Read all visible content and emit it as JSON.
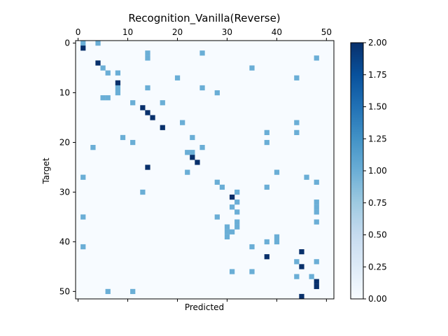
{
  "chart_data": {
    "type": "heatmap",
    "title": "Recognition_Vanilla(Reverse)",
    "xlabel": "Predicted",
    "ylabel": "Target",
    "xlim": [
      -0.5,
      51.5
    ],
    "ylim": [
      -0.5,
      51.5
    ],
    "x_ticks": [
      0,
      10,
      20,
      30,
      40,
      50
    ],
    "y_ticks": [
      0,
      10,
      20,
      30,
      40,
      50
    ],
    "colormap": "Blues",
    "value_range": [
      0,
      2
    ],
    "colorbar_ticks": [
      "0.00",
      "0.25",
      "0.50",
      "0.75",
      "1.00",
      "1.25",
      "1.50",
      "1.75",
      "2.00"
    ],
    "colors": {
      "background": "#f7fbff",
      "value_1": "#6aaed6",
      "value_2": "#08306b"
    },
    "cells": [
      [
        0,
        1,
        1
      ],
      [
        0,
        4,
        1
      ],
      [
        1,
        1,
        2
      ],
      [
        2,
        14,
        1
      ],
      [
        2,
        25,
        1
      ],
      [
        3,
        14,
        1
      ],
      [
        3,
        48,
        1
      ],
      [
        4,
        4,
        2
      ],
      [
        5,
        5,
        1
      ],
      [
        5,
        35,
        1
      ],
      [
        6,
        6,
        1
      ],
      [
        6,
        8,
        1
      ],
      [
        7,
        20,
        1
      ],
      [
        7,
        44,
        1
      ],
      [
        8,
        8,
        2
      ],
      [
        9,
        8,
        1
      ],
      [
        9,
        14,
        1
      ],
      [
        9,
        25,
        1
      ],
      [
        10,
        8,
        1
      ],
      [
        10,
        28,
        1
      ],
      [
        11,
        5,
        1
      ],
      [
        11,
        6,
        1
      ],
      [
        12,
        11,
        1
      ],
      [
        12,
        17,
        1
      ],
      [
        13,
        13,
        2
      ],
      [
        14,
        14,
        2
      ],
      [
        15,
        15,
        2
      ],
      [
        16,
        21,
        1
      ],
      [
        16,
        44,
        1
      ],
      [
        17,
        17,
        2
      ],
      [
        18,
        38,
        1
      ],
      [
        18,
        44,
        1
      ],
      [
        19,
        9,
        1
      ],
      [
        19,
        23,
        1
      ],
      [
        20,
        11,
        1
      ],
      [
        20,
        38,
        1
      ],
      [
        21,
        3,
        1
      ],
      [
        21,
        25,
        1
      ],
      [
        22,
        22,
        1
      ],
      [
        22,
        23,
        1
      ],
      [
        23,
        23,
        2
      ],
      [
        24,
        24,
        2
      ],
      [
        25,
        14,
        2
      ],
      [
        26,
        22,
        1
      ],
      [
        26,
        40,
        1
      ],
      [
        27,
        1,
        1
      ],
      [
        27,
        46,
        1
      ],
      [
        28,
        28,
        1
      ],
      [
        28,
        48,
        1
      ],
      [
        29,
        29,
        1
      ],
      [
        29,
        38,
        1
      ],
      [
        30,
        13,
        1
      ],
      [
        30,
        32,
        1
      ],
      [
        31,
        31,
        2
      ],
      [
        32,
        32,
        1
      ],
      [
        32,
        48,
        1
      ],
      [
        33,
        31,
        1
      ],
      [
        33,
        48,
        1
      ],
      [
        34,
        32,
        1
      ],
      [
        34,
        48,
        1
      ],
      [
        35,
        1,
        1
      ],
      [
        35,
        28,
        1
      ],
      [
        36,
        32,
        1
      ],
      [
        36,
        48,
        1
      ],
      [
        37,
        30,
        1
      ],
      [
        37,
        32,
        1
      ],
      [
        38,
        30,
        1
      ],
      [
        38,
        31,
        1
      ],
      [
        39,
        30,
        1
      ],
      [
        39,
        40,
        1
      ],
      [
        40,
        38,
        1
      ],
      [
        40,
        40,
        1
      ],
      [
        41,
        1,
        1
      ],
      [
        41,
        35,
        1
      ],
      [
        42,
        45,
        2
      ],
      [
        43,
        38,
        2
      ],
      [
        44,
        44,
        1
      ],
      [
        44,
        48,
        1
      ],
      [
        45,
        45,
        2
      ],
      [
        46,
        31,
        1
      ],
      [
        46,
        35,
        1
      ],
      [
        47,
        44,
        1
      ],
      [
        47,
        47,
        1
      ],
      [
        48,
        48,
        2
      ],
      [
        49,
        48,
        2
      ],
      [
        50,
        6,
        1
      ],
      [
        50,
        11,
        1
      ],
      [
        51,
        45,
        2
      ]
    ]
  }
}
